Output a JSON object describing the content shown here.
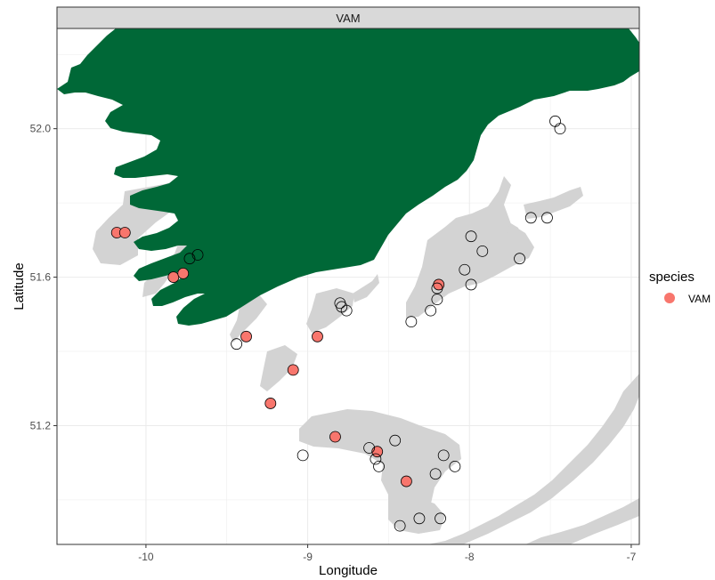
{
  "facet": {
    "label": "VAM"
  },
  "chart_data": {
    "type": "scatter",
    "xlabel": "Longitude",
    "ylabel": "Latitude",
    "xlim": [
      -10.55,
      -6.95
    ],
    "ylim": [
      50.88,
      52.27
    ],
    "x_ticks": [
      -10,
      -9,
      -8,
      -7
    ],
    "y_ticks": [
      51.2,
      51.6,
      52.0
    ],
    "x_tick_labels": [
      "-10",
      "-9",
      "-8",
      "-7"
    ],
    "y_tick_labels": [
      "51.2",
      "51.6",
      "52.0"
    ],
    "grid": true,
    "legend": {
      "title": "species",
      "position": "right",
      "entries": [
        "VAM"
      ]
    },
    "colors": {
      "land": "#006837",
      "seabed_habitat": "#d3d3d3",
      "species_point": "#f8766d",
      "absence_point": "none",
      "point_outline": "#000000",
      "strip_fill": "#d9d9d9",
      "panel_border": "#333333",
      "gridline": "#ebebeb"
    },
    "series": [
      {
        "name": "VAM",
        "points": [
          [
            -10.18,
            51.72
          ],
          [
            -10.13,
            51.72
          ],
          [
            -9.83,
            51.6
          ],
          [
            -9.77,
            51.61
          ],
          [
            -9.38,
            51.44
          ],
          [
            -8.94,
            51.44
          ],
          [
            -9.09,
            51.35
          ],
          [
            -9.23,
            51.26
          ],
          [
            -8.83,
            51.17
          ],
          [
            -8.57,
            51.13
          ],
          [
            -8.39,
            51.05
          ],
          [
            -8.19,
            51.58
          ]
        ]
      },
      {
        "points": [
          [
            -9.73,
            51.65
          ],
          [
            -9.68,
            51.66
          ],
          [
            -9.44,
            51.42
          ],
          [
            -8.8,
            51.53
          ],
          [
            -8.79,
            51.52
          ],
          [
            -8.76,
            51.51
          ],
          [
            -9.03,
            51.12
          ],
          [
            -8.62,
            51.14
          ],
          [
            -8.46,
            51.16
          ],
          [
            -8.58,
            51.11
          ],
          [
            -8.56,
            51.09
          ],
          [
            -8.16,
            51.12
          ],
          [
            -8.09,
            51.09
          ],
          [
            -8.21,
            51.07
          ],
          [
            -8.31,
            50.95
          ],
          [
            -8.18,
            50.95
          ],
          [
            -8.43,
            50.93
          ],
          [
            -8.36,
            51.48
          ],
          [
            -8.24,
            51.51
          ],
          [
            -8.2,
            51.54
          ],
          [
            -8.2,
            51.57
          ],
          [
            -8.03,
            51.62
          ],
          [
            -7.99,
            51.58
          ],
          [
            -7.99,
            51.71
          ],
          [
            -7.92,
            51.67
          ],
          [
            -7.69,
            51.65
          ],
          [
            -7.62,
            51.76
          ],
          [
            -7.52,
            51.76
          ],
          [
            -7.47,
            52.02
          ],
          [
            -7.44,
            52.0
          ]
        ]
      }
    ]
  }
}
